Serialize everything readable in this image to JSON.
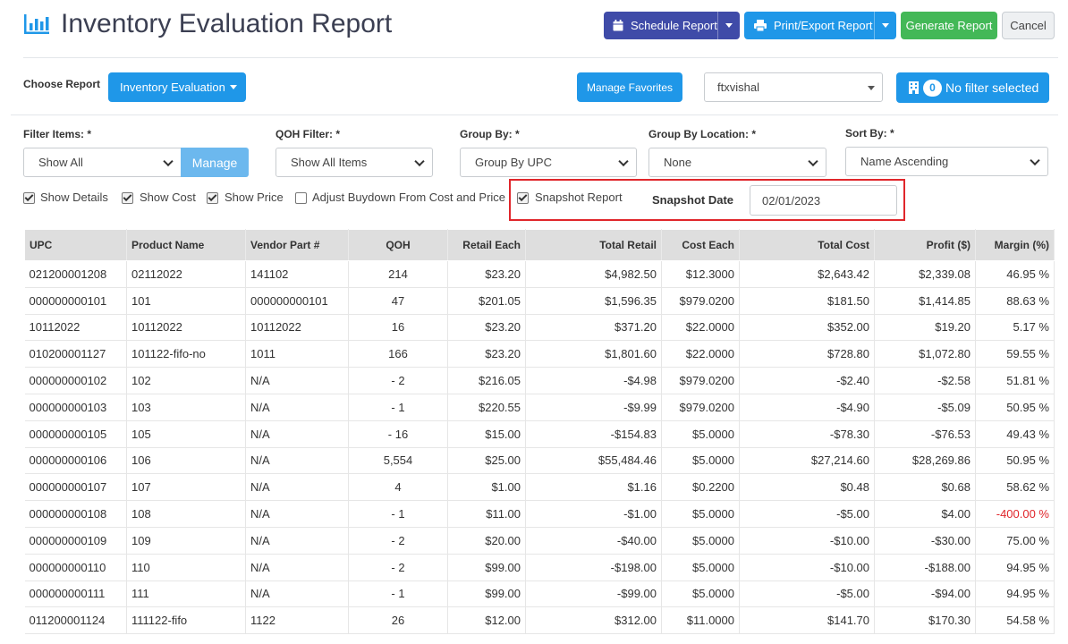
{
  "header": {
    "title": "Inventory Evaluation Report",
    "schedule_label": "Schedule Report",
    "print_label": "Print/Export Report",
    "generate_label": "Generate Report",
    "cancel_label": "Cancel"
  },
  "toolbar": {
    "choose_report_label": "Choose Report",
    "report_selected": "Inventory Evaluation",
    "manage_favorites_label": "Manage Favorites",
    "user_selected": "ftxvishal",
    "filter_count": "0",
    "filter_label": "No filter selected"
  },
  "filters": {
    "filter_items_label": "Filter Items: *",
    "filter_items_value": "Show All",
    "manage_label": "Manage",
    "qoh_label": "QOH Filter: *",
    "qoh_value": "Show All Items",
    "group_by_label": "Group By: *",
    "group_by_value": "Group By UPC",
    "group_loc_label": "Group By Location: *",
    "group_loc_value": "None",
    "sort_label": "Sort By: *",
    "sort_value": "Name Ascending"
  },
  "options": {
    "show_details": "Show Details",
    "show_cost": "Show Cost",
    "show_price": "Show Price",
    "adjust_buydown": "Adjust Buydown From Cost and Price",
    "snapshot_report": "Snapshot Report",
    "snapshot_date_label": "Snapshot Date",
    "snapshot_date_value": "02/01/2023"
  },
  "colors": {
    "accent_blue": "#1f97e8",
    "indigo": "#3f4ba8",
    "green": "#43b857",
    "highlight_red": "#e0262b"
  },
  "table": {
    "columns": [
      "UPC",
      "Product Name",
      "Vendor Part #",
      "QOH",
      "Retail Each",
      "Total Retail",
      "Cost Each",
      "Total Cost",
      "Profit ($)",
      "Margin (%)"
    ],
    "rows": [
      [
        "021200001208",
        "02112022",
        "141102",
        "214",
        "$23.20",
        "$4,982.50",
        "$12.3000",
        "$2,643.42",
        "$2,339.08",
        "46.95 %"
      ],
      [
        "000000000101",
        "101",
        "000000000101",
        "47",
        "$201.05",
        "$1,596.35",
        "$979.0200",
        "$181.50",
        "$1,414.85",
        "88.63 %"
      ],
      [
        "10112022",
        "10112022",
        "10112022",
        "16",
        "$23.20",
        "$371.20",
        "$22.0000",
        "$352.00",
        "$19.20",
        "5.17 %"
      ],
      [
        "010200001127",
        "101122-fifo-no",
        "1011",
        "166",
        "$23.20",
        "$1,801.60",
        "$22.0000",
        "$728.80",
        "$1,072.80",
        "59.55 %"
      ],
      [
        "000000000102",
        "102",
        "N/A",
        "- 2",
        "$216.05",
        "-$4.98",
        "$979.0200",
        "-$2.40",
        "-$2.58",
        "51.81 %"
      ],
      [
        "000000000103",
        "103",
        "N/A",
        "- 1",
        "$220.55",
        "-$9.99",
        "$979.0200",
        "-$4.90",
        "-$5.09",
        "50.95 %"
      ],
      [
        "000000000105",
        "105",
        "N/A",
        "- 16",
        "$15.00",
        "-$154.83",
        "$5.0000",
        "-$78.30",
        "-$76.53",
        "49.43 %"
      ],
      [
        "000000000106",
        "106",
        "N/A",
        "5,554",
        "$25.00",
        "$55,484.46",
        "$5.0000",
        "$27,214.60",
        "$28,269.86",
        "50.95 %"
      ],
      [
        "000000000107",
        "107",
        "N/A",
        "4",
        "$1.00",
        "$1.16",
        "$0.2200",
        "$0.48",
        "$0.68",
        "58.62 %"
      ],
      [
        "000000000108",
        "108",
        "N/A",
        "- 1",
        "$11.00",
        "-$1.00",
        "$5.0000",
        "-$5.00",
        "$4.00",
        "-400.00 %"
      ],
      [
        "000000000109",
        "109",
        "N/A",
        "- 2",
        "$20.00",
        "-$40.00",
        "$5.0000",
        "-$10.00",
        "-$30.00",
        "75.00 %"
      ],
      [
        "000000000110",
        "110",
        "N/A",
        "- 2",
        "$99.00",
        "-$198.00",
        "$5.0000",
        "-$10.00",
        "-$188.00",
        "94.95 %"
      ],
      [
        "000000000111",
        "111",
        "N/A",
        "- 1",
        "$99.00",
        "-$99.00",
        "$5.0000",
        "-$5.00",
        "-$94.00",
        "94.95 %"
      ],
      [
        "011200001124",
        "111122-fifo",
        "1122",
        "26",
        "$12.00",
        "$312.00",
        "$11.0000",
        "$141.70",
        "$170.30",
        "54.58 %"
      ]
    ]
  }
}
